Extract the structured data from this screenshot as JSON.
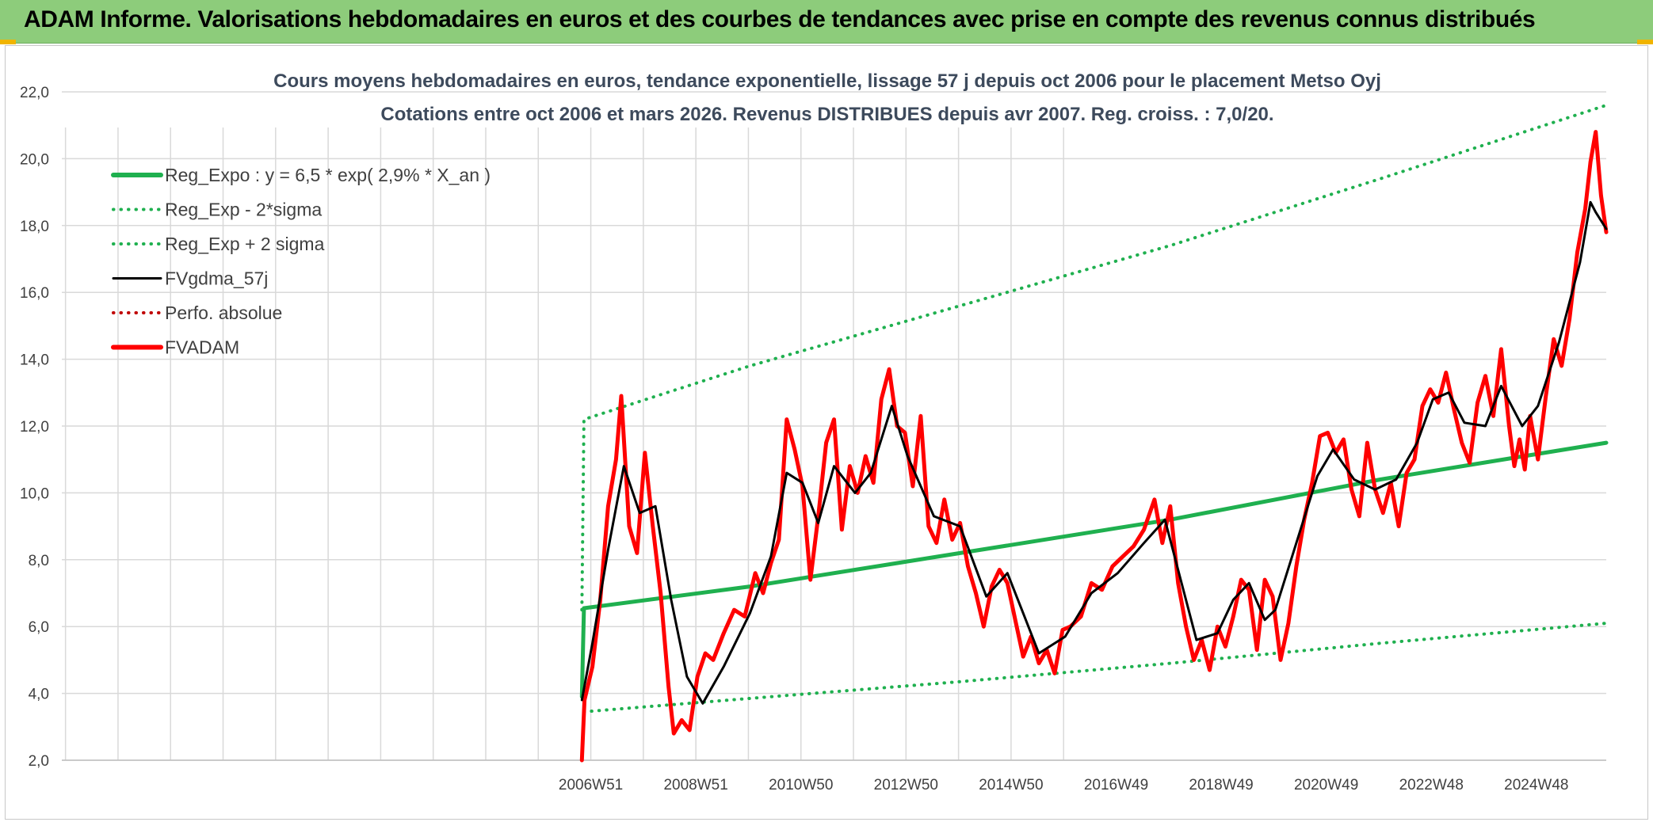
{
  "banner": {
    "title": "ADAM Informe. Valorisations hebdomadaires en euros et des courbes de tendances avec prise en compte des revenus connus distribués"
  },
  "colors": {
    "banner_bg": "#8dcc7b",
    "reg_expo": "#1fb04f",
    "fvgdma": "#000000",
    "fvadam": "#ff0000",
    "perfo": "#c00000"
  },
  "chart_data": {
    "type": "line",
    "title": "Cours moyens hebdomadaires en euros, tendance exponentielle, lissage 57 j depuis oct 2006 pour le placement Metso Oyj",
    "subtitle": "Cotations entre oct 2006 et mars 2026. Revenus DISTRIBUES depuis avr 2007. Reg. croiss. : 7,0/20.",
    "xlabel": "",
    "ylabel": "",
    "ylim": [
      2,
      22
    ],
    "y_ticks": [
      "2,0",
      "4,0",
      "6,0",
      "8,0",
      "10,0",
      "12,0",
      "14,0",
      "16,0",
      "18,0",
      "20,0",
      "22,0"
    ],
    "x_ticks": [
      "2006W51",
      "2008W51",
      "2010W50",
      "2012W50",
      "2014W50",
      "2016W49",
      "2018W49",
      "2020W49",
      "2022W48",
      "2024W48"
    ],
    "x_range": [
      1996.9,
      2026.3
    ],
    "grid": true,
    "legend_position": "top-left",
    "series": [
      {
        "name": "Reg_Expo : y = 6,5 * exp( 2,9% *  X_an )",
        "style": "solid-thick",
        "color": "#1fb04f",
        "x": [
          2006.8,
          2006.84,
          2010,
          2014,
          2018,
          2022,
          2026.3
        ],
        "y": [
          3.9,
          6.55,
          7.2,
          8.2,
          9.2,
          10.4,
          11.5
        ]
      },
      {
        "name": "Reg_Exp - 2*sigma",
        "style": "dotted",
        "color": "#1fb04f",
        "x": [
          2006.84,
          2010,
          2014,
          2018,
          2022,
          2026.3
        ],
        "y": [
          3.45,
          3.85,
          4.35,
          4.9,
          5.5,
          6.1
        ]
      },
      {
        "name": "Reg_Exp + 2 sigma",
        "style": "dotted",
        "color": "#1fb04f",
        "x": [
          2006.8,
          2006.84,
          2010,
          2014,
          2018,
          2022,
          2026.3
        ],
        "y": [
          6.5,
          12.2,
          13.8,
          15.6,
          17.4,
          19.4,
          21.6
        ]
      },
      {
        "name": "FVgdma_57j",
        "style": "solid",
        "color": "#000000",
        "x": [
          2006.8,
          2007.0,
          2007.3,
          2007.6,
          2007.9,
          2008.2,
          2008.5,
          2008.8,
          2009.1,
          2009.5,
          2010.0,
          2010.4,
          2010.7,
          2011.0,
          2011.3,
          2011.6,
          2012.0,
          2012.3,
          2012.7,
          2013.0,
          2013.5,
          2014.0,
          2014.5,
          2014.9,
          2015.2,
          2015.5,
          2016.0,
          2016.5,
          2017.0,
          2017.5,
          2017.9,
          2018.2,
          2018.5,
          2018.9,
          2019.2,
          2019.5,
          2019.8,
          2020.0,
          2020.4,
          2020.8,
          2021.1,
          2021.5,
          2021.9,
          2022.3,
          2022.7,
          2023.0,
          2023.3,
          2023.6,
          2024.0,
          2024.3,
          2024.7,
          2025.0,
          2025.4,
          2025.8,
          2026.0,
          2026.1,
          2026.3
        ],
        "y": [
          3.8,
          5.5,
          8.3,
          10.8,
          9.4,
          9.6,
          6.8,
          4.5,
          3.7,
          4.8,
          6.4,
          8.1,
          10.6,
          10.3,
          9.1,
          10.8,
          10.0,
          10.6,
          12.6,
          11.1,
          9.3,
          9.0,
          6.9,
          7.6,
          6.4,
          5.2,
          5.7,
          7.0,
          7.6,
          8.5,
          9.2,
          7.4,
          5.6,
          5.8,
          6.8,
          7.3,
          6.2,
          6.5,
          8.5,
          10.5,
          11.3,
          10.4,
          10.1,
          10.4,
          11.5,
          12.8,
          13.0,
          12.1,
          12.0,
          13.2,
          12.0,
          12.6,
          14.5,
          16.9,
          18.7,
          18.4,
          17.9
        ]
      },
      {
        "name": "Perfo. absolue",
        "style": "dotted",
        "color": "#c00000",
        "x": [],
        "y": []
      },
      {
        "name": "FVADAM",
        "style": "solid-thick",
        "color": "#ff0000",
        "x": [
          2006.8,
          2006.85,
          2007.0,
          2007.15,
          2007.3,
          2007.45,
          2007.55,
          2007.7,
          2007.85,
          2008.0,
          2008.15,
          2008.3,
          2008.45,
          2008.55,
          2008.7,
          2008.85,
          2009.0,
          2009.15,
          2009.3,
          2009.5,
          2009.7,
          2009.9,
          2010.1,
          2010.25,
          2010.4,
          2010.55,
          2010.7,
          2010.85,
          2011.0,
          2011.15,
          2011.3,
          2011.45,
          2011.6,
          2011.75,
          2011.9,
          2012.05,
          2012.2,
          2012.35,
          2012.5,
          2012.65,
          2012.8,
          2012.95,
          2013.1,
          2013.25,
          2013.4,
          2013.55,
          2013.7,
          2013.85,
          2014.0,
          2014.15,
          2014.3,
          2014.45,
          2014.6,
          2014.75,
          2014.9,
          2015.05,
          2015.2,
          2015.35,
          2015.5,
          2015.65,
          2015.8,
          2015.95,
          2016.1,
          2016.3,
          2016.5,
          2016.7,
          2016.9,
          2017.1,
          2017.3,
          2017.5,
          2017.7,
          2017.85,
          2018.0,
          2018.15,
          2018.3,
          2018.45,
          2018.6,
          2018.75,
          2018.9,
          2019.05,
          2019.2,
          2019.35,
          2019.5,
          2019.65,
          2019.8,
          2019.95,
          2020.1,
          2020.25,
          2020.4,
          2020.55,
          2020.7,
          2020.85,
          2021.0,
          2021.15,
          2021.3,
          2021.45,
          2021.6,
          2021.75,
          2021.9,
          2022.05,
          2022.2,
          2022.35,
          2022.5,
          2022.65,
          2022.8,
          2022.95,
          2023.1,
          2023.25,
          2023.4,
          2023.55,
          2023.7,
          2023.85,
          2024.0,
          2024.15,
          2024.3,
          2024.45,
          2024.55,
          2024.65,
          2024.75,
          2024.85,
          2025.0,
          2025.15,
          2025.3,
          2025.45,
          2025.6,
          2025.75,
          2025.9,
          2026.0,
          2026.1,
          2026.2,
          2026.3
        ],
        "y": [
          2.0,
          3.8,
          4.8,
          6.8,
          9.6,
          11.0,
          12.9,
          9.0,
          8.2,
          11.2,
          9.0,
          7.0,
          4.2,
          2.8,
          3.2,
          2.9,
          4.5,
          5.2,
          5.0,
          5.8,
          6.5,
          6.3,
          7.6,
          7.0,
          7.9,
          8.6,
          12.2,
          11.3,
          10.2,
          7.4,
          9.3,
          11.5,
          12.2,
          8.9,
          10.8,
          10.0,
          11.1,
          10.3,
          12.8,
          13.7,
          12.0,
          11.8,
          10.2,
          12.3,
          9.0,
          8.5,
          9.8,
          8.6,
          9.1,
          7.8,
          7.0,
          6.0,
          7.2,
          7.7,
          7.3,
          6.2,
          5.1,
          5.7,
          4.9,
          5.3,
          4.6,
          5.9,
          6.0,
          6.3,
          7.3,
          7.1,
          7.8,
          8.1,
          8.4,
          8.9,
          9.8,
          8.5,
          9.6,
          7.3,
          6.0,
          5.0,
          5.6,
          4.7,
          6.0,
          5.4,
          6.3,
          7.4,
          7.1,
          5.3,
          7.4,
          6.9,
          5.0,
          6.1,
          7.8,
          9.2,
          10.3,
          11.7,
          11.8,
          11.2,
          11.6,
          10.1,
          9.3,
          11.5,
          10.1,
          9.4,
          10.3,
          9.0,
          10.6,
          11.0,
          12.6,
          13.1,
          12.7,
          13.6,
          12.5,
          11.5,
          10.9,
          12.7,
          13.5,
          12.3,
          14.3,
          12.0,
          10.8,
          11.6,
          10.7,
          12.3,
          11.0,
          12.9,
          14.6,
          13.8,
          15.2,
          17.2,
          18.5,
          19.9,
          20.8,
          18.9,
          17.8
        ]
      }
    ]
  }
}
